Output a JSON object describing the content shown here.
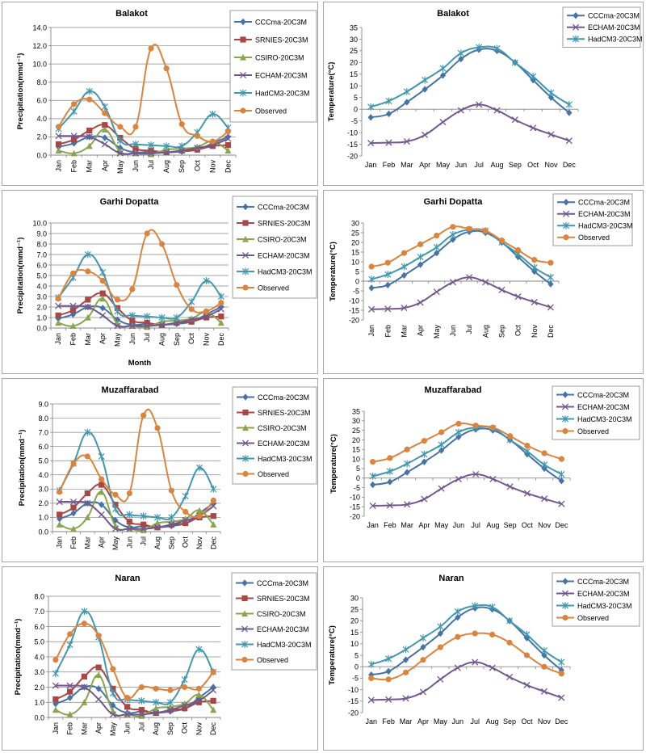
{
  "months": [
    "Jan",
    "Feb",
    "Mar",
    "Apr",
    "May",
    "Jun",
    "Jul",
    "Aug",
    "Sep",
    "Oct",
    "Nov",
    "Dec"
  ],
  "styles": {
    "CCCma-20C3M": {
      "color": "#4572a7",
      "marker": "diamond"
    },
    "SRNIES-20C3M": {
      "color": "#aa4643",
      "marker": "square"
    },
    "CSIRO-20C3M": {
      "color": "#89a54e",
      "marker": "triangle"
    },
    "ECHAM-20C3M": {
      "color": "#71588f",
      "marker": "x"
    },
    "HadCM3-20C3M": {
      "color": "#4198af",
      "marker": "star"
    },
    "Observed": {
      "color": "#db843d",
      "marker": "circle"
    }
  },
  "chart_data": [
    {
      "type": "line",
      "title": "Balakot",
      "xlabel": "",
      "ylabel": "Precipitation(mmd⁻¹)",
      "ylim": [
        0,
        14
      ],
      "ystep": 2,
      "ydecimals": 1,
      "grid": true,
      "series": [
        {
          "name": "CCCma-20C3M",
          "values": [
            0.9,
            1.3,
            2.0,
            1.9,
            0.8,
            0.3,
            0.4,
            0.3,
            0.4,
            0.6,
            1.3,
            2.0
          ]
        },
        {
          "name": "SRNIES-20C3M",
          "values": [
            1.2,
            1.7,
            2.7,
            3.3,
            1.9,
            0.7,
            0.5,
            0.3,
            0.5,
            0.6,
            1.0,
            1.1
          ]
        },
        {
          "name": "CSIRO-20C3M",
          "values": [
            0.5,
            0.2,
            1.0,
            2.8,
            0.4,
            0.2,
            0.1,
            0.6,
            0.7,
            0.9,
            1.5,
            0.5
          ]
        },
        {
          "name": "ECHAM-20C3M",
          "values": [
            2.1,
            2.1,
            2.0,
            1.2,
            0.2,
            0.2,
            0.2,
            0.3,
            0.5,
            0.8,
            1.1,
            1.8
          ]
        },
        {
          "name": "HadCM3-20C3M",
          "values": [
            2.9,
            4.8,
            7.0,
            5.3,
            1.6,
            1.2,
            1.1,
            1.0,
            1.0,
            2.5,
            4.5,
            3.0
          ]
        },
        {
          "name": "Observed",
          "values": [
            3.1,
            5.6,
            6.1,
            4.6,
            3.1,
            3.1,
            11.7,
            9.5,
            3.4,
            2.1,
            1.5,
            2.6
          ]
        }
      ]
    },
    {
      "type": "line",
      "title": "Balakot",
      "xlabel": "",
      "ylabel": "Temperature(°C)",
      "ylim": [
        -20,
        35
      ],
      "ystep": 5,
      "ydecimals": 0,
      "grid": false,
      "series": [
        {
          "name": "CCCma-20C3M",
          "values": [
            -3.5,
            -2,
            3,
            8.5,
            14.5,
            21.5,
            25.5,
            25,
            20,
            12.5,
            5,
            -1.5
          ]
        },
        {
          "name": "ECHAM-20C3M",
          "values": [
            -14.5,
            -14.3,
            -13.8,
            -11,
            -5.5,
            -0.5,
            2,
            -0.5,
            -4.5,
            -8,
            -10.8,
            -13.5
          ]
        },
        {
          "name": "HadCM3-20C3M",
          "values": [
            1,
            3.5,
            7.5,
            12.5,
            17.5,
            24,
            26.5,
            26,
            20,
            14,
            7,
            2
          ]
        }
      ]
    },
    {
      "type": "line",
      "title": "Garhi Dopatta",
      "xlabel": "Month",
      "ylabel": "Precipitation(mmd⁻¹)",
      "ylim": [
        0,
        10
      ],
      "ystep": 1,
      "ydecimals": 1,
      "grid": true,
      "series": [
        {
          "name": "CCCma-20C3M",
          "values": [
            0.9,
            1.3,
            2.0,
            1.9,
            0.8,
            0.3,
            0.4,
            0.3,
            0.4,
            0.6,
            1.3,
            2.0
          ]
        },
        {
          "name": "SRNIES-20C3M",
          "values": [
            1.2,
            1.7,
            2.7,
            3.3,
            1.9,
            0.7,
            0.5,
            0.3,
            0.5,
            0.6,
            1.0,
            1.1
          ]
        },
        {
          "name": "CSIRO-20C3M",
          "values": [
            0.5,
            0.2,
            1.0,
            2.8,
            0.4,
            0.2,
            0.1,
            0.6,
            0.7,
            0.9,
            1.5,
            0.5
          ]
        },
        {
          "name": "ECHAM-20C3M",
          "values": [
            2.1,
            2.1,
            2.0,
            1.2,
            0.2,
            0.2,
            0.2,
            0.3,
            0.5,
            0.8,
            1.1,
            1.8
          ]
        },
        {
          "name": "HadCM3-20C3M",
          "values": [
            2.9,
            4.8,
            7.0,
            5.3,
            1.6,
            1.2,
            1.1,
            1.0,
            1.0,
            2.5,
            4.5,
            3.0
          ]
        },
        {
          "name": "Observed",
          "values": [
            2.8,
            5.2,
            5.4,
            4.5,
            2.7,
            3.7,
            9.0,
            8.0,
            4.1,
            1.8,
            1.6,
            2.4
          ]
        }
      ]
    },
    {
      "type": "line",
      "title": "Garhi Dopatta",
      "xlabel": "",
      "ylabel": "Temperature(°C)",
      "ylim": [
        -20,
        30
      ],
      "ystep": 5,
      "ydecimals": 0,
      "grid": false,
      "series": [
        {
          "name": "CCCma-20C3M",
          "values": [
            -3.5,
            -2,
            3,
            8.5,
            14.5,
            21.5,
            25.5,
            25,
            20,
            12.5,
            5,
            -1.5
          ]
        },
        {
          "name": "ECHAM-20C3M",
          "values": [
            -14.5,
            -14.3,
            -13.8,
            -11,
            -5.5,
            -0.5,
            2,
            -0.5,
            -4.5,
            -8,
            -10.8,
            -13.5
          ]
        },
        {
          "name": "HadCM3-20C3M",
          "values": [
            1,
            3.5,
            7.5,
            12.5,
            17.5,
            24,
            26.5,
            26,
            20,
            14,
            7,
            2
          ]
        },
        {
          "name": "Observed",
          "values": [
            7.5,
            9.5,
            14.5,
            19,
            23.5,
            28,
            27,
            26,
            21,
            16,
            11,
            9.5
          ]
        }
      ]
    },
    {
      "type": "line",
      "title": "Muzaffarabad",
      "xlabel": "",
      "ylabel": "Precipitation(mmd⁻¹)",
      "ylim": [
        0,
        9
      ],
      "ystep": 1,
      "ydecimals": 1,
      "grid": true,
      "series": [
        {
          "name": "CCCma-20C3M",
          "values": [
            0.9,
            1.3,
            2.0,
            1.9,
            0.8,
            0.3,
            0.4,
            0.3,
            0.4,
            0.6,
            1.3,
            2.0
          ]
        },
        {
          "name": "SRNIES-20C3M",
          "values": [
            1.2,
            1.7,
            2.7,
            3.3,
            1.9,
            0.7,
            0.5,
            0.3,
            0.5,
            0.6,
            1.0,
            1.1
          ]
        },
        {
          "name": "CSIRO-20C3M",
          "values": [
            0.5,
            0.2,
            1.0,
            2.8,
            0.4,
            0.2,
            0.1,
            0.6,
            0.7,
            0.9,
            1.5,
            0.5
          ]
        },
        {
          "name": "ECHAM-20C3M",
          "values": [
            2.1,
            2.1,
            2.0,
            1.2,
            0.2,
            0.2,
            0.2,
            0.3,
            0.5,
            0.8,
            1.1,
            1.8
          ]
        },
        {
          "name": "HadCM3-20C3M",
          "values": [
            2.9,
            4.8,
            7.0,
            5.3,
            1.6,
            1.2,
            1.1,
            1.0,
            1.0,
            2.5,
            4.5,
            3.0
          ]
        },
        {
          "name": "Observed",
          "values": [
            2.8,
            4.8,
            5.3,
            3.7,
            2.6,
            2.7,
            8.2,
            7.3,
            2.9,
            1.4,
            1.1,
            2.2
          ]
        }
      ]
    },
    {
      "type": "line",
      "title": "Muzaffarabad",
      "xlabel": "",
      "ylabel": "Temperature(°C)",
      "ylim": [
        -20,
        35
      ],
      "ystep": 5,
      "ydecimals": 0,
      "grid": false,
      "series": [
        {
          "name": "CCCma-20C3M",
          "values": [
            -3.5,
            -2,
            3,
            8.5,
            14.5,
            21.5,
            25.5,
            25,
            20,
            12.5,
            5,
            -1.5
          ]
        },
        {
          "name": "ECHAM-20C3M",
          "values": [
            -14.5,
            -14.3,
            -13.8,
            -11,
            -5.5,
            -0.5,
            2,
            -0.5,
            -4.5,
            -8,
            -10.8,
            -13.5
          ]
        },
        {
          "name": "HadCM3-20C3M",
          "values": [
            1,
            3.5,
            7.5,
            12.5,
            17.5,
            24,
            26.5,
            26,
            20,
            14,
            7,
            2
          ]
        },
        {
          "name": "Observed",
          "values": [
            8.5,
            10.5,
            15,
            19.5,
            24,
            28.5,
            27.5,
            26.5,
            22,
            17,
            13,
            10
          ]
        }
      ]
    },
    {
      "type": "line",
      "title": "Naran",
      "xlabel": "",
      "ylabel": "Precipitation(mmd⁻¹)",
      "ylim": [
        0,
        8
      ],
      "ystep": 1,
      "ydecimals": 1,
      "grid": true,
      "series": [
        {
          "name": "CCCma-20C3M",
          "values": [
            0.9,
            1.3,
            2.0,
            1.9,
            0.8,
            0.3,
            0.4,
            0.3,
            0.4,
            0.6,
            1.3,
            2.0
          ]
        },
        {
          "name": "SRNIES-20C3M",
          "values": [
            1.2,
            1.7,
            2.7,
            3.3,
            1.9,
            0.7,
            0.5,
            0.3,
            0.5,
            0.6,
            1.0,
            1.1
          ]
        },
        {
          "name": "CSIRO-20C3M",
          "values": [
            0.5,
            0.2,
            1.0,
            2.8,
            0.4,
            0.2,
            0.1,
            0.6,
            0.7,
            0.9,
            1.5,
            0.5
          ]
        },
        {
          "name": "ECHAM-20C3M",
          "values": [
            2.1,
            2.1,
            2.0,
            1.2,
            0.2,
            0.2,
            0.2,
            0.3,
            0.5,
            0.8,
            1.1,
            1.8
          ]
        },
        {
          "name": "HadCM3-20C3M",
          "values": [
            2.9,
            4.8,
            7.0,
            5.3,
            1.6,
            1.2,
            1.1,
            1.0,
            1.0,
            2.5,
            4.5,
            3.0
          ]
        },
        {
          "name": "Observed",
          "values": [
            3.8,
            5.5,
            6.2,
            5.4,
            3.2,
            1.3,
            2.0,
            1.9,
            1.8,
            2.0,
            1.9,
            3.0
          ]
        }
      ]
    },
    {
      "type": "line",
      "title": "Naran",
      "xlabel": "",
      "ylabel": "Temperature(°C)",
      "ylim": [
        -20,
        30
      ],
      "ystep": 5,
      "ydecimals": 0,
      "grid": false,
      "series": [
        {
          "name": "CCCma-20C3M",
          "values": [
            -3.5,
            -2,
            3,
            8.5,
            14.5,
            21.5,
            25.5,
            25,
            20,
            12.5,
            5,
            -1.5
          ]
        },
        {
          "name": "ECHAM-20C3M",
          "values": [
            -14.5,
            -14.3,
            -13.8,
            -11,
            -5.5,
            -0.5,
            2,
            -0.5,
            -4.5,
            -8,
            -10.8,
            -13.5
          ]
        },
        {
          "name": "HadCM3-20C3M",
          "values": [
            1,
            3.5,
            7.5,
            12.5,
            17.5,
            24,
            26.5,
            26,
            20,
            14,
            7,
            2
          ]
        },
        {
          "name": "Observed",
          "values": [
            -5,
            -5.5,
            -2.5,
            3,
            8.5,
            13,
            14.5,
            14,
            10.5,
            5,
            0,
            -3
          ]
        }
      ]
    }
  ]
}
